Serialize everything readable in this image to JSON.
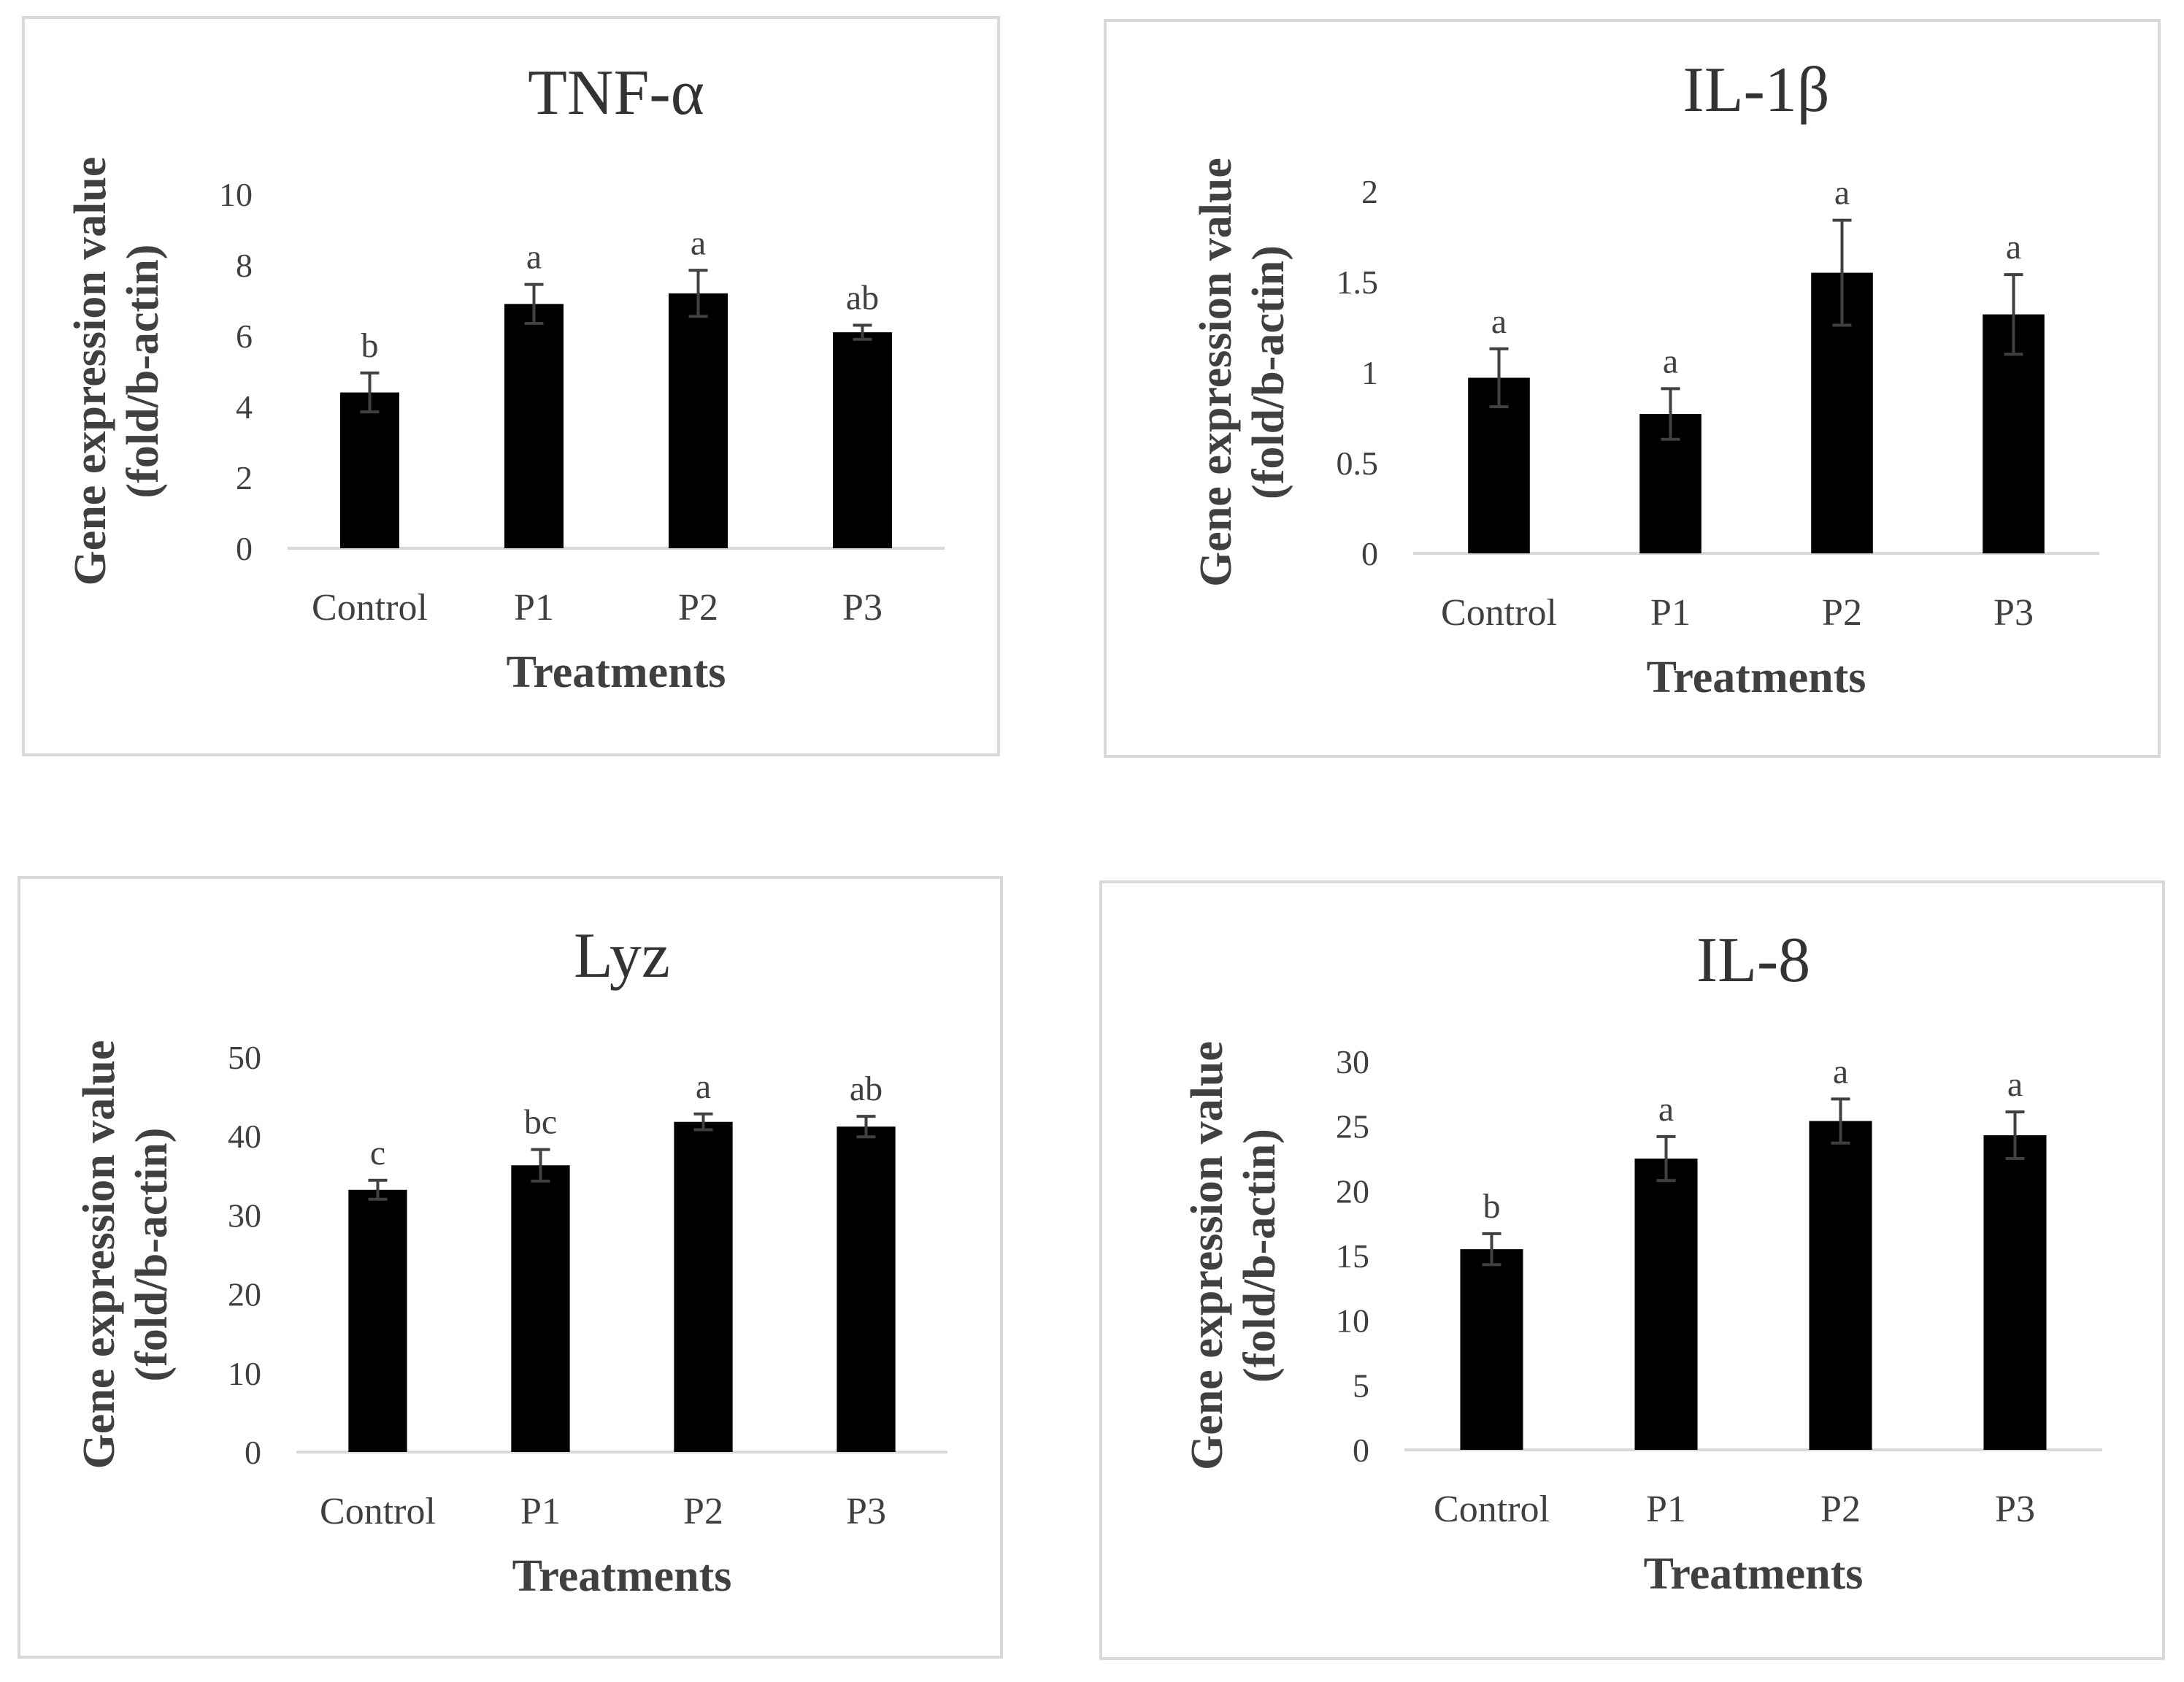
{
  "chart_data": [
    {
      "type": "bar",
      "title": "TNF-α",
      "categories": [
        "Control",
        "P1",
        "P2",
        "P3"
      ],
      "values": [
        4.4,
        6.9,
        7.2,
        6.1
      ],
      "errors": [
        0.55,
        0.55,
        0.65,
        0.2
      ],
      "significance": [
        "b",
        "a",
        "a",
        "ab"
      ],
      "ylim": [
        0,
        10
      ],
      "yticks": [
        0,
        2,
        4,
        6,
        8,
        10
      ],
      "ylabel_line1": "Gene expression value",
      "ylabel_line2": "(fold/b-actin)",
      "xlabel": "Treatments"
    },
    {
      "type": "bar",
      "title": "IL-1β",
      "categories": [
        "Control",
        "P1",
        "P2",
        "P3"
      ],
      "values": [
        0.97,
        0.77,
        1.55,
        1.32
      ],
      "errors": [
        0.16,
        0.14,
        0.29,
        0.22
      ],
      "significance": [
        "a",
        "a",
        "a",
        "a"
      ],
      "ylim": [
        0,
        2
      ],
      "yticks": [
        0,
        0.5,
        1,
        1.5,
        2
      ],
      "ylabel_line1": "Gene expression value",
      "ylabel_line2": "(fold/b-actin)",
      "xlabel": "Treatments"
    },
    {
      "type": "bar",
      "title": "Lyz",
      "categories": [
        "Control",
        "P1",
        "P2",
        "P3"
      ],
      "values": [
        33.2,
        36.3,
        41.8,
        41.2
      ],
      "errors": [
        1.2,
        2.0,
        1.0,
        1.3
      ],
      "significance": [
        "c",
        "bc",
        "a",
        "ab"
      ],
      "ylim": [
        0,
        50
      ],
      "yticks": [
        0,
        10,
        20,
        30,
        40,
        50
      ],
      "ylabel_line1": "Gene expression value",
      "ylabel_line2": "(fold/b-actin)",
      "xlabel": "Treatments"
    },
    {
      "type": "bar",
      "title": "IL-8",
      "categories": [
        "Control",
        "P1",
        "P2",
        "P3"
      ],
      "values": [
        15.5,
        22.5,
        25.4,
        24.3
      ],
      "errors": [
        1.2,
        1.7,
        1.7,
        1.8
      ],
      "significance": [
        "b",
        "a",
        "a",
        "a"
      ],
      "ylim": [
        0,
        30
      ],
      "yticks": [
        0,
        5,
        10,
        15,
        20,
        25,
        30
      ],
      "ylabel_line1": "Gene expression value",
      "ylabel_line2": "(fold/b-actin)",
      "xlabel": "Treatments"
    }
  ]
}
